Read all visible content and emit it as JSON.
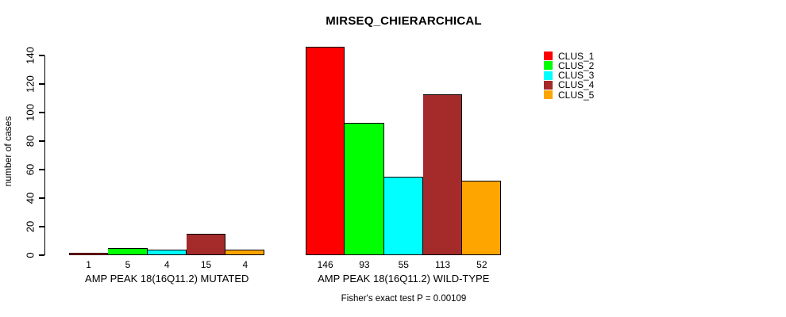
{
  "chart_data": {
    "type": "bar",
    "title": "MIRSEQ_CHIERARCHICAL",
    "ylabel": "number of cases",
    "xlabel": "",
    "ylim": [
      0,
      140
    ],
    "yticks": [
      0,
      20,
      40,
      60,
      80,
      100,
      120,
      140
    ],
    "grid": false,
    "legend_position": "top-right",
    "legend": [
      {
        "label": "CLUS_1",
        "color": "#FF0000"
      },
      {
        "label": "CLUS_2",
        "color": "#00FF00"
      },
      {
        "label": "CLUS_3",
        "color": "#00FFFF"
      },
      {
        "label": "CLUS_4",
        "color": "#A52A2A"
      },
      {
        "label": "CLUS_5",
        "color": "#FFA500"
      }
    ],
    "groups": [
      {
        "label": "AMP PEAK 18(16Q11.2) MUTATED",
        "values": [
          1,
          5,
          4,
          15,
          4
        ],
        "value_labels": [
          "1",
          "5",
          "4",
          "15",
          "4"
        ]
      },
      {
        "label": "AMP PEAK 18(16Q11.2) WILD-TYPE",
        "values": [
          146,
          93,
          55,
          113,
          52
        ],
        "value_labels": [
          "146",
          "93",
          "55",
          "113",
          "52"
        ]
      }
    ],
    "footnote": "Fisher's exact test P = 0.00109"
  }
}
